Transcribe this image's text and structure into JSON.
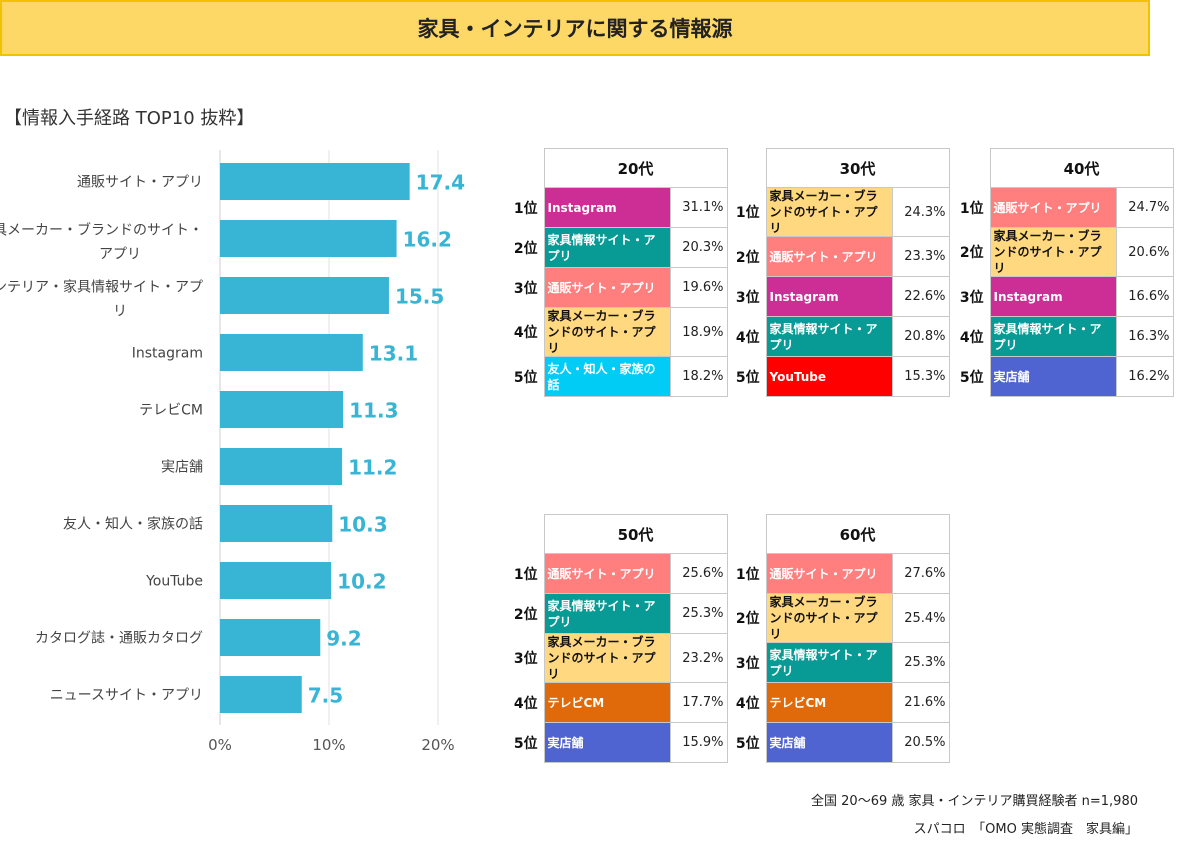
{
  "title": "家具・インテリアに関する情報源",
  "subtitle": "【情報入手経路 TOP10 抜粋】",
  "colors": {
    "通販サイト・アプリ": "#ff7f7f",
    "家具メーカー・ブランドのサイト・アプリ": "#ffd880",
    "家具情報サイト・アプリ": "#089a94",
    "Instagram": "#cc2e96",
    "友人・知人・家族の話": "#00ccf5",
    "YouTube": "#ff0000",
    "実店舗": "#4f63d1",
    "テレビCM": "#e0690a",
    "bar": "#38b4d4",
    "banner": "#fdd867"
  },
  "chart_data": {
    "type": "bar",
    "orientation": "horizontal",
    "categories": [
      "通販サイト・アプリ",
      "家具メーカー・ブランドのサイト・アプリ",
      "インテリア・家具情報サイト・アプリ",
      "Instagram",
      "テレビCM",
      "実店舗",
      "友人・知人・家族の話",
      "YouTube",
      "カタログ誌・通販カタログ",
      "ニュースサイト・アプリ"
    ],
    "values": [
      17.4,
      16.2,
      15.5,
      13.1,
      11.3,
      11.2,
      10.3,
      10.2,
      9.2,
      7.5
    ],
    "xlim": [
      0,
      20
    ],
    "xticks": [
      "0%",
      "10%",
      "20%"
    ],
    "grid": true
  },
  "rankings": [
    {
      "age": "20代",
      "items": [
        {
          "rank": "1位",
          "label": "Instagram",
          "value": "31.1%"
        },
        {
          "rank": "2位",
          "label": "家具情報サイト・アプリ",
          "value": "20.3%"
        },
        {
          "rank": "3位",
          "label": "通販サイト・アプリ",
          "value": "19.6%"
        },
        {
          "rank": "4位",
          "label": "家具メーカー・ブランドのサイト・アプリ",
          "value": "18.9%"
        },
        {
          "rank": "5位",
          "label": "友人・知人・家族の話",
          "value": "18.2%"
        }
      ]
    },
    {
      "age": "30代",
      "items": [
        {
          "rank": "1位",
          "label": "家具メーカー・ブランドのサイト・アプリ",
          "value": "24.3%"
        },
        {
          "rank": "2位",
          "label": "通販サイト・アプリ",
          "value": "23.3%"
        },
        {
          "rank": "3位",
          "label": "Instagram",
          "value": "22.6%"
        },
        {
          "rank": "4位",
          "label": "家具情報サイト・アプリ",
          "value": "20.8%"
        },
        {
          "rank": "5位",
          "label": "YouTube",
          "value": "15.3%"
        }
      ]
    },
    {
      "age": "40代",
      "items": [
        {
          "rank": "1位",
          "label": "通販サイト・アプリ",
          "value": "24.7%"
        },
        {
          "rank": "2位",
          "label": "家具メーカー・ブランドのサイト・アプリ",
          "value": "20.6%"
        },
        {
          "rank": "3位",
          "label": "Instagram",
          "value": "16.6%"
        },
        {
          "rank": "4位",
          "label": "家具情報サイト・アプリ",
          "value": "16.3%"
        },
        {
          "rank": "5位",
          "label": "実店舗",
          "value": "16.2%"
        }
      ]
    },
    {
      "age": "50代",
      "items": [
        {
          "rank": "1位",
          "label": "通販サイト・アプリ",
          "value": "25.6%"
        },
        {
          "rank": "2位",
          "label": "家具情報サイト・アプリ",
          "value": "25.3%"
        },
        {
          "rank": "3位",
          "label": "家具メーカー・ブランドのサイト・アプリ",
          "value": "23.2%"
        },
        {
          "rank": "4位",
          "label": "テレビCM",
          "value": "17.7%"
        },
        {
          "rank": "5位",
          "label": "実店舗",
          "value": "15.9%"
        }
      ]
    },
    {
      "age": "60代",
      "items": [
        {
          "rank": "1位",
          "label": "通販サイト・アプリ",
          "value": "27.6%"
        },
        {
          "rank": "2位",
          "label": "家具メーカー・ブランドのサイト・アプリ",
          "value": "25.4%"
        },
        {
          "rank": "3位",
          "label": "家具情報サイト・アプリ",
          "value": "25.3%"
        },
        {
          "rank": "4位",
          "label": "テレビCM",
          "value": "21.6%"
        },
        {
          "rank": "5位",
          "label": "実店舗",
          "value": "20.5%"
        }
      ]
    }
  ],
  "notes": {
    "sample": "全国 20～69 歳 家具・インテリア購買経験者 n=1,980",
    "source": "スパコロ　「OMO 実態調査　家具編」"
  }
}
